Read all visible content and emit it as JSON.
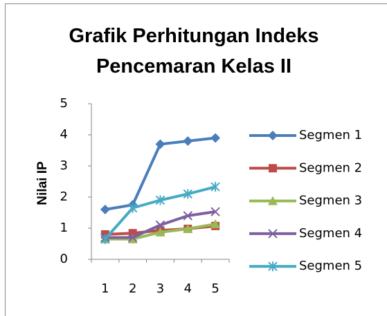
{
  "chart_data": {
    "type": "line",
    "title": "Grafik Perhitungan Indeks Pencemaran Kelas II",
    "y_label": "Nilai IP",
    "categories": [
      "1",
      "2",
      "3",
      "4",
      "5"
    ],
    "ylim": [
      0,
      5
    ],
    "yticks": [
      0,
      1,
      2,
      3,
      4,
      5
    ],
    "grid": false,
    "legend": "right",
    "series": [
      {
        "name": "Segmen 1",
        "color": "#4a7ebb",
        "marker": "diamond",
        "values": [
          1.6,
          1.75,
          3.7,
          3.8,
          3.9
        ]
      },
      {
        "name": "Segmen 2",
        "color": "#be4b48",
        "marker": "square",
        "values": [
          0.8,
          0.84,
          0.93,
          0.98,
          1.07
        ]
      },
      {
        "name": "Segmen 3",
        "color": "#98b954",
        "marker": "triangle",
        "values": [
          0.65,
          0.65,
          0.87,
          0.98,
          1.13
        ]
      },
      {
        "name": "Segmen 4",
        "color": "#7d60a0",
        "marker": "x",
        "values": [
          0.7,
          0.7,
          1.1,
          1.4,
          1.53
        ]
      },
      {
        "name": "Segmen 5",
        "color": "#46aac5",
        "marker": "star",
        "values": [
          0.65,
          1.65,
          1.9,
          2.1,
          2.33
        ]
      }
    ]
  }
}
